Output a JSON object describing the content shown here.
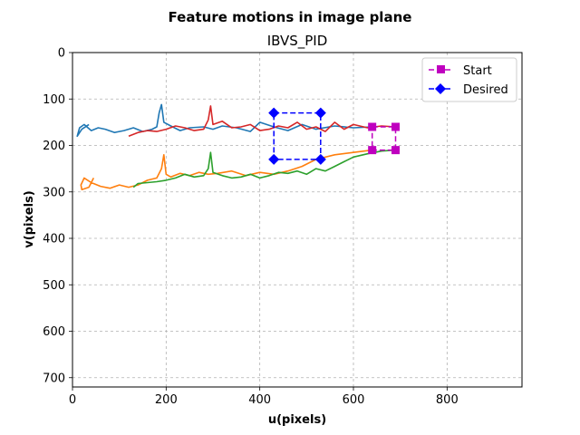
{
  "chart_data": {
    "type": "line",
    "title": "Feature motions in image plane",
    "subtitle": "IBVS_PID",
    "xlabel": "u(pixels)",
    "ylabel": "v(pixels)",
    "xlim": [
      0,
      960
    ],
    "ylim": [
      720,
      0
    ],
    "y_inverted": true,
    "x_ticks": [
      0,
      200,
      400,
      600,
      800
    ],
    "y_ticks": [
      0,
      100,
      200,
      300,
      400,
      500,
      600,
      700
    ],
    "x_tick_labels": [
      "0",
      "200",
      "400",
      "600",
      "800"
    ],
    "y_tick_labels": [
      "0",
      "100",
      "200",
      "300",
      "400",
      "500",
      "600",
      "700"
    ],
    "grid": true,
    "grid_style": "dashed",
    "legend_position": "upper right",
    "colors": {
      "blue": "#1f77b4",
      "orange": "#ff7f0e",
      "green": "#2ca02c",
      "red": "#d62728",
      "start": "#bf00bf",
      "desired": "#0000ff"
    },
    "trajectories": [
      {
        "color_key": "blue",
        "u": [
          640,
          600,
          560,
          520,
          490,
          460,
          430,
          400,
          380,
          350,
          320,
          300,
          280,
          250,
          230,
          210,
          195,
          190,
          185,
          180,
          170,
          150,
          130,
          110,
          90,
          70,
          55,
          40,
          25,
          15,
          10,
          20,
          35
        ],
        "v": [
          160,
          162,
          158,
          165,
          155,
          168,
          160,
          150,
          170,
          162,
          158,
          165,
          160,
          162,
          168,
          158,
          150,
          112,
          130,
          160,
          165,
          170,
          162,
          168,
          172,
          165,
          162,
          168,
          155,
          162,
          180,
          165,
          155
        ]
      },
      {
        "color_key": "orange",
        "u": [
          640,
          600,
          560,
          520,
          490,
          460,
          430,
          400,
          370,
          340,
          310,
          290,
          270,
          250,
          230,
          210,
          200,
          195,
          190,
          180,
          160,
          140,
          120,
          100,
          80,
          60,
          40,
          25,
          18,
          20,
          35,
          45
        ],
        "v": [
          210,
          215,
          220,
          230,
          245,
          255,
          262,
          258,
          265,
          255,
          260,
          262,
          258,
          265,
          260,
          268,
          262,
          220,
          250,
          270,
          275,
          285,
          290,
          285,
          292,
          288,
          280,
          270,
          285,
          295,
          290,
          270
        ]
      },
      {
        "color_key": "green",
        "u": [
          690,
          660,
          630,
          600,
          580,
          560,
          540,
          520,
          500,
          480,
          460,
          440,
          420,
          400,
          380,
          360,
          340,
          320,
          300,
          295,
          290,
          280,
          260,
          240,
          220,
          200,
          180,
          160,
          140,
          130
        ],
        "v": [
          210,
          212,
          218,
          225,
          235,
          245,
          255,
          250,
          262,
          255,
          260,
          258,
          265,
          270,
          262,
          268,
          270,
          265,
          258,
          215,
          250,
          265,
          268,
          262,
          270,
          275,
          278,
          280,
          282,
          290
        ]
      },
      {
        "color_key": "red",
        "u": [
          690,
          660,
          630,
          600,
          580,
          560,
          540,
          520,
          500,
          480,
          460,
          440,
          420,
          400,
          380,
          360,
          340,
          320,
          300,
          295,
          290,
          280,
          260,
          240,
          220,
          200,
          180,
          160,
          140,
          120
        ],
        "v": [
          160,
          158,
          162,
          155,
          165,
          150,
          170,
          160,
          165,
          150,
          162,
          158,
          165,
          168,
          155,
          160,
          162,
          148,
          155,
          115,
          145,
          165,
          168,
          162,
          158,
          165,
          170,
          168,
          172,
          180
        ]
      }
    ],
    "start": {
      "label": "Start",
      "points": [
        [
          640,
          160
        ],
        [
          690,
          160
        ],
        [
          690,
          210
        ],
        [
          640,
          210
        ]
      ]
    },
    "desired": {
      "label": "Desired",
      "points": [
        [
          430,
          130
        ],
        [
          530,
          130
        ],
        [
          530,
          230
        ],
        [
          430,
          230
        ]
      ]
    }
  }
}
